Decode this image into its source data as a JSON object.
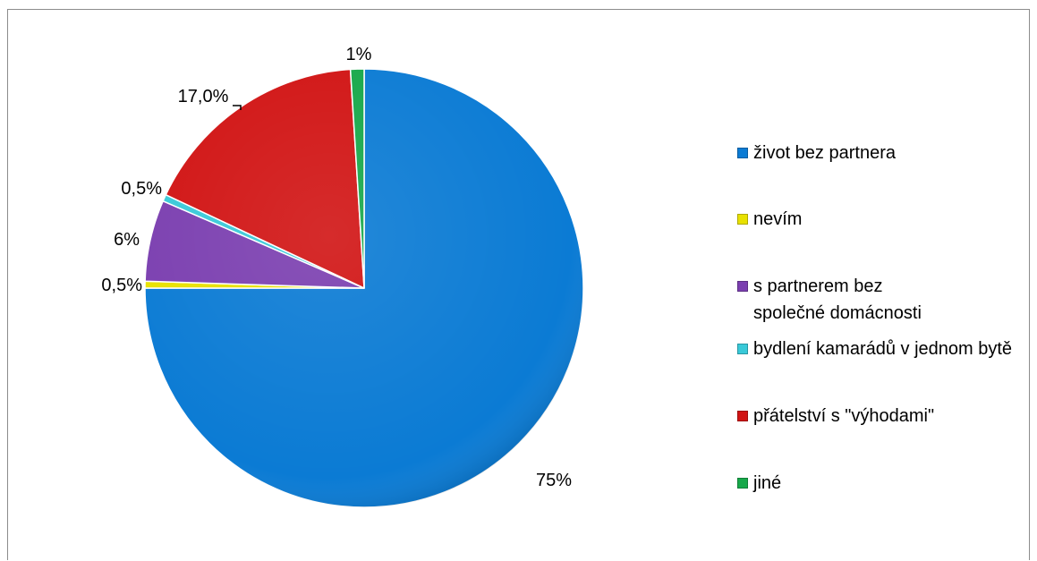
{
  "chart_data": {
    "type": "pie",
    "title": "",
    "start_angle_deg": 90,
    "direction": "clockwise",
    "slices": [
      {
        "name": "život bez partnera",
        "value": 75,
        "label": "75%",
        "color": "#0b7bd4"
      },
      {
        "name": "nevím",
        "value": 0.5,
        "label": "0,5%",
        "color": "#e8e100"
      },
      {
        "name": "s partnerem bez společné domácnosti",
        "value": 6,
        "label": "6%",
        "color": "#7b3fb0"
      },
      {
        "name": "bydlení kamarádů v jednom bytě",
        "value": 0.5,
        "label": "0,5%",
        "color": "#39c9d8"
      },
      {
        "name": "přátelství s \"výhodami\"",
        "value": 17.0,
        "label": "17,0%",
        "color": "#d11414"
      },
      {
        "name": "jiné",
        "value": 1,
        "label": "1%",
        "color": "#17a84a"
      }
    ],
    "legend_placement": "right"
  }
}
